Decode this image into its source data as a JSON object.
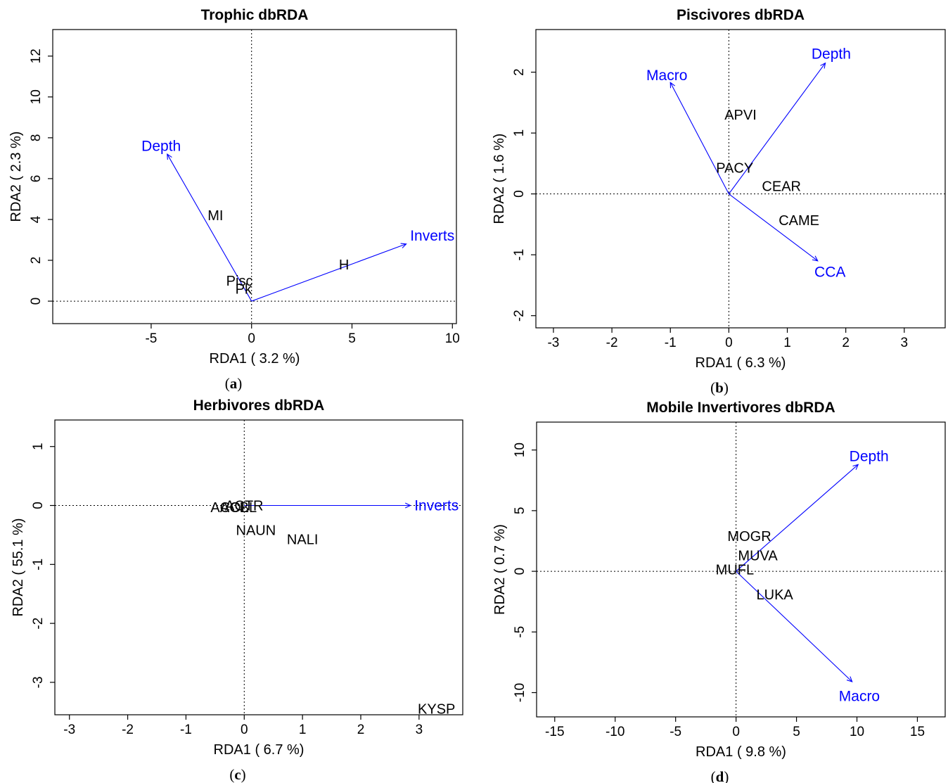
{
  "chart_data": [
    {
      "type": "scatter",
      "panel_label": "a",
      "title": "Trophic dbRDA",
      "xlabel": "RDA1 ( 3.2 %)",
      "ylabel": "RDA2 ( 2.3 %)",
      "xlim": [
        -9.9,
        10.2
      ],
      "ylim": [
        -1.1,
        13.3
      ],
      "xticks": [
        -5,
        0,
        5,
        10
      ],
      "yticks": [
        0,
        2,
        4,
        6,
        8,
        10,
        12
      ],
      "species": [
        {
          "label": "MI",
          "x": -1.8,
          "y": 4.2
        },
        {
          "label": "Pisc",
          "x": -0.6,
          "y": 1.0
        },
        {
          "label": "Pk",
          "x": -0.4,
          "y": 0.6
        },
        {
          "label": "H",
          "x": 4.6,
          "y": 1.8
        }
      ],
      "vectors": [
        {
          "label": "Depth",
          "x": -4.2,
          "y": 7.2,
          "label_x": -4.5,
          "label_y": 7.6
        },
        {
          "label": "Inverts",
          "x": 7.7,
          "y": 2.8,
          "label_x": 9.0,
          "label_y": 3.2
        }
      ],
      "vector_color": "#0000ff"
    },
    {
      "type": "scatter",
      "panel_label": "b",
      "title": "Piscivores dbRDA",
      "xlabel": "RDA1 ( 6.3 %)",
      "ylabel": "RDA2 ( 1.6 %)",
      "xlim": [
        -3.3,
        3.7
      ],
      "ylim": [
        -2.2,
        2.7
      ],
      "xticks": [
        -3,
        -2,
        -1,
        0,
        1,
        2,
        3
      ],
      "yticks": [
        -2,
        -1,
        0,
        1,
        2
      ],
      "species": [
        {
          "label": "APVI",
          "x": 0.2,
          "y": 1.3
        },
        {
          "label": "PACY",
          "x": 0.1,
          "y": 0.43
        },
        {
          "label": "CEAR",
          "x": 0.9,
          "y": 0.13
        },
        {
          "label": "CAME",
          "x": 1.2,
          "y": -0.43
        }
      ],
      "vectors": [
        {
          "label": "Depth",
          "x": 1.65,
          "y": 2.15,
          "label_x": 1.75,
          "label_y": 2.3
        },
        {
          "label": "Macro",
          "x": -1.0,
          "y": 1.83,
          "label_x": -1.06,
          "label_y": 1.95
        },
        {
          "label": "CCA",
          "x": 1.52,
          "y": -1.1,
          "label_x": 1.73,
          "label_y": -1.28
        }
      ],
      "vector_color": "#0000ff"
    },
    {
      "type": "scatter",
      "panel_label": "c",
      "title": "Herbivores dbRDA",
      "xlabel": "RDA1 ( 6.7 %)",
      "ylabel": "RDA2 ( 55.1 %)",
      "xlim": [
        -3.25,
        3.75
      ],
      "ylim": [
        -3.55,
        1.45
      ],
      "xticks": [
        -3,
        -2,
        -1,
        0,
        1,
        2,
        3
      ],
      "yticks": [
        -3,
        -2,
        -1,
        0,
        1
      ],
      "species": [
        {
          "label": "ACTR",
          "x": 0.0,
          "y": 0.0
        },
        {
          "label": "ACOL",
          "x": -0.25,
          "y": -0.03
        },
        {
          "label": "ACBL",
          "x": -0.1,
          "y": -0.03
        },
        {
          "label": "NAUN",
          "x": 0.2,
          "y": -0.42
        },
        {
          "label": "NALI",
          "x": 1.0,
          "y": -0.57
        },
        {
          "label": "KYSP",
          "x": 3.3,
          "y": -3.45
        }
      ],
      "vectors": [
        {
          "label": "Inverts",
          "x": 2.85,
          "y": 0.0,
          "label_x": 3.3,
          "label_y": 0.0
        }
      ],
      "vector_color": "#0000ff"
    },
    {
      "type": "scatter",
      "panel_label": "d",
      "title": "Mobile Invertivores dbRDA",
      "xlabel": "RDA1 ( 9.8 %)",
      "ylabel": "RDA2 ( 0.7 %)",
      "xlim": [
        -16.5,
        17.3
      ],
      "ylim": [
        -12.0,
        12.3
      ],
      "xticks": [
        -15,
        -10,
        -5,
        0,
        5,
        10,
        15
      ],
      "yticks": [
        -10,
        -5,
        0,
        5,
        10
      ],
      "species": [
        {
          "label": "MOGR",
          "x": 1.1,
          "y": 2.9
        },
        {
          "label": "MUVA",
          "x": 1.8,
          "y": 1.3
        },
        {
          "label": "MUFL",
          "x": -0.1,
          "y": 0.15
        },
        {
          "label": "LUKA",
          "x": 3.2,
          "y": -1.9
        }
      ],
      "vectors": [
        {
          "label": "Depth",
          "x": 10.1,
          "y": 8.8,
          "label_x": 11.0,
          "label_y": 9.5
        },
        {
          "label": "Macro",
          "x": 9.6,
          "y": -9.1,
          "label_x": 10.2,
          "label_y": -10.3
        }
      ],
      "vector_color": "#0000ff"
    }
  ]
}
